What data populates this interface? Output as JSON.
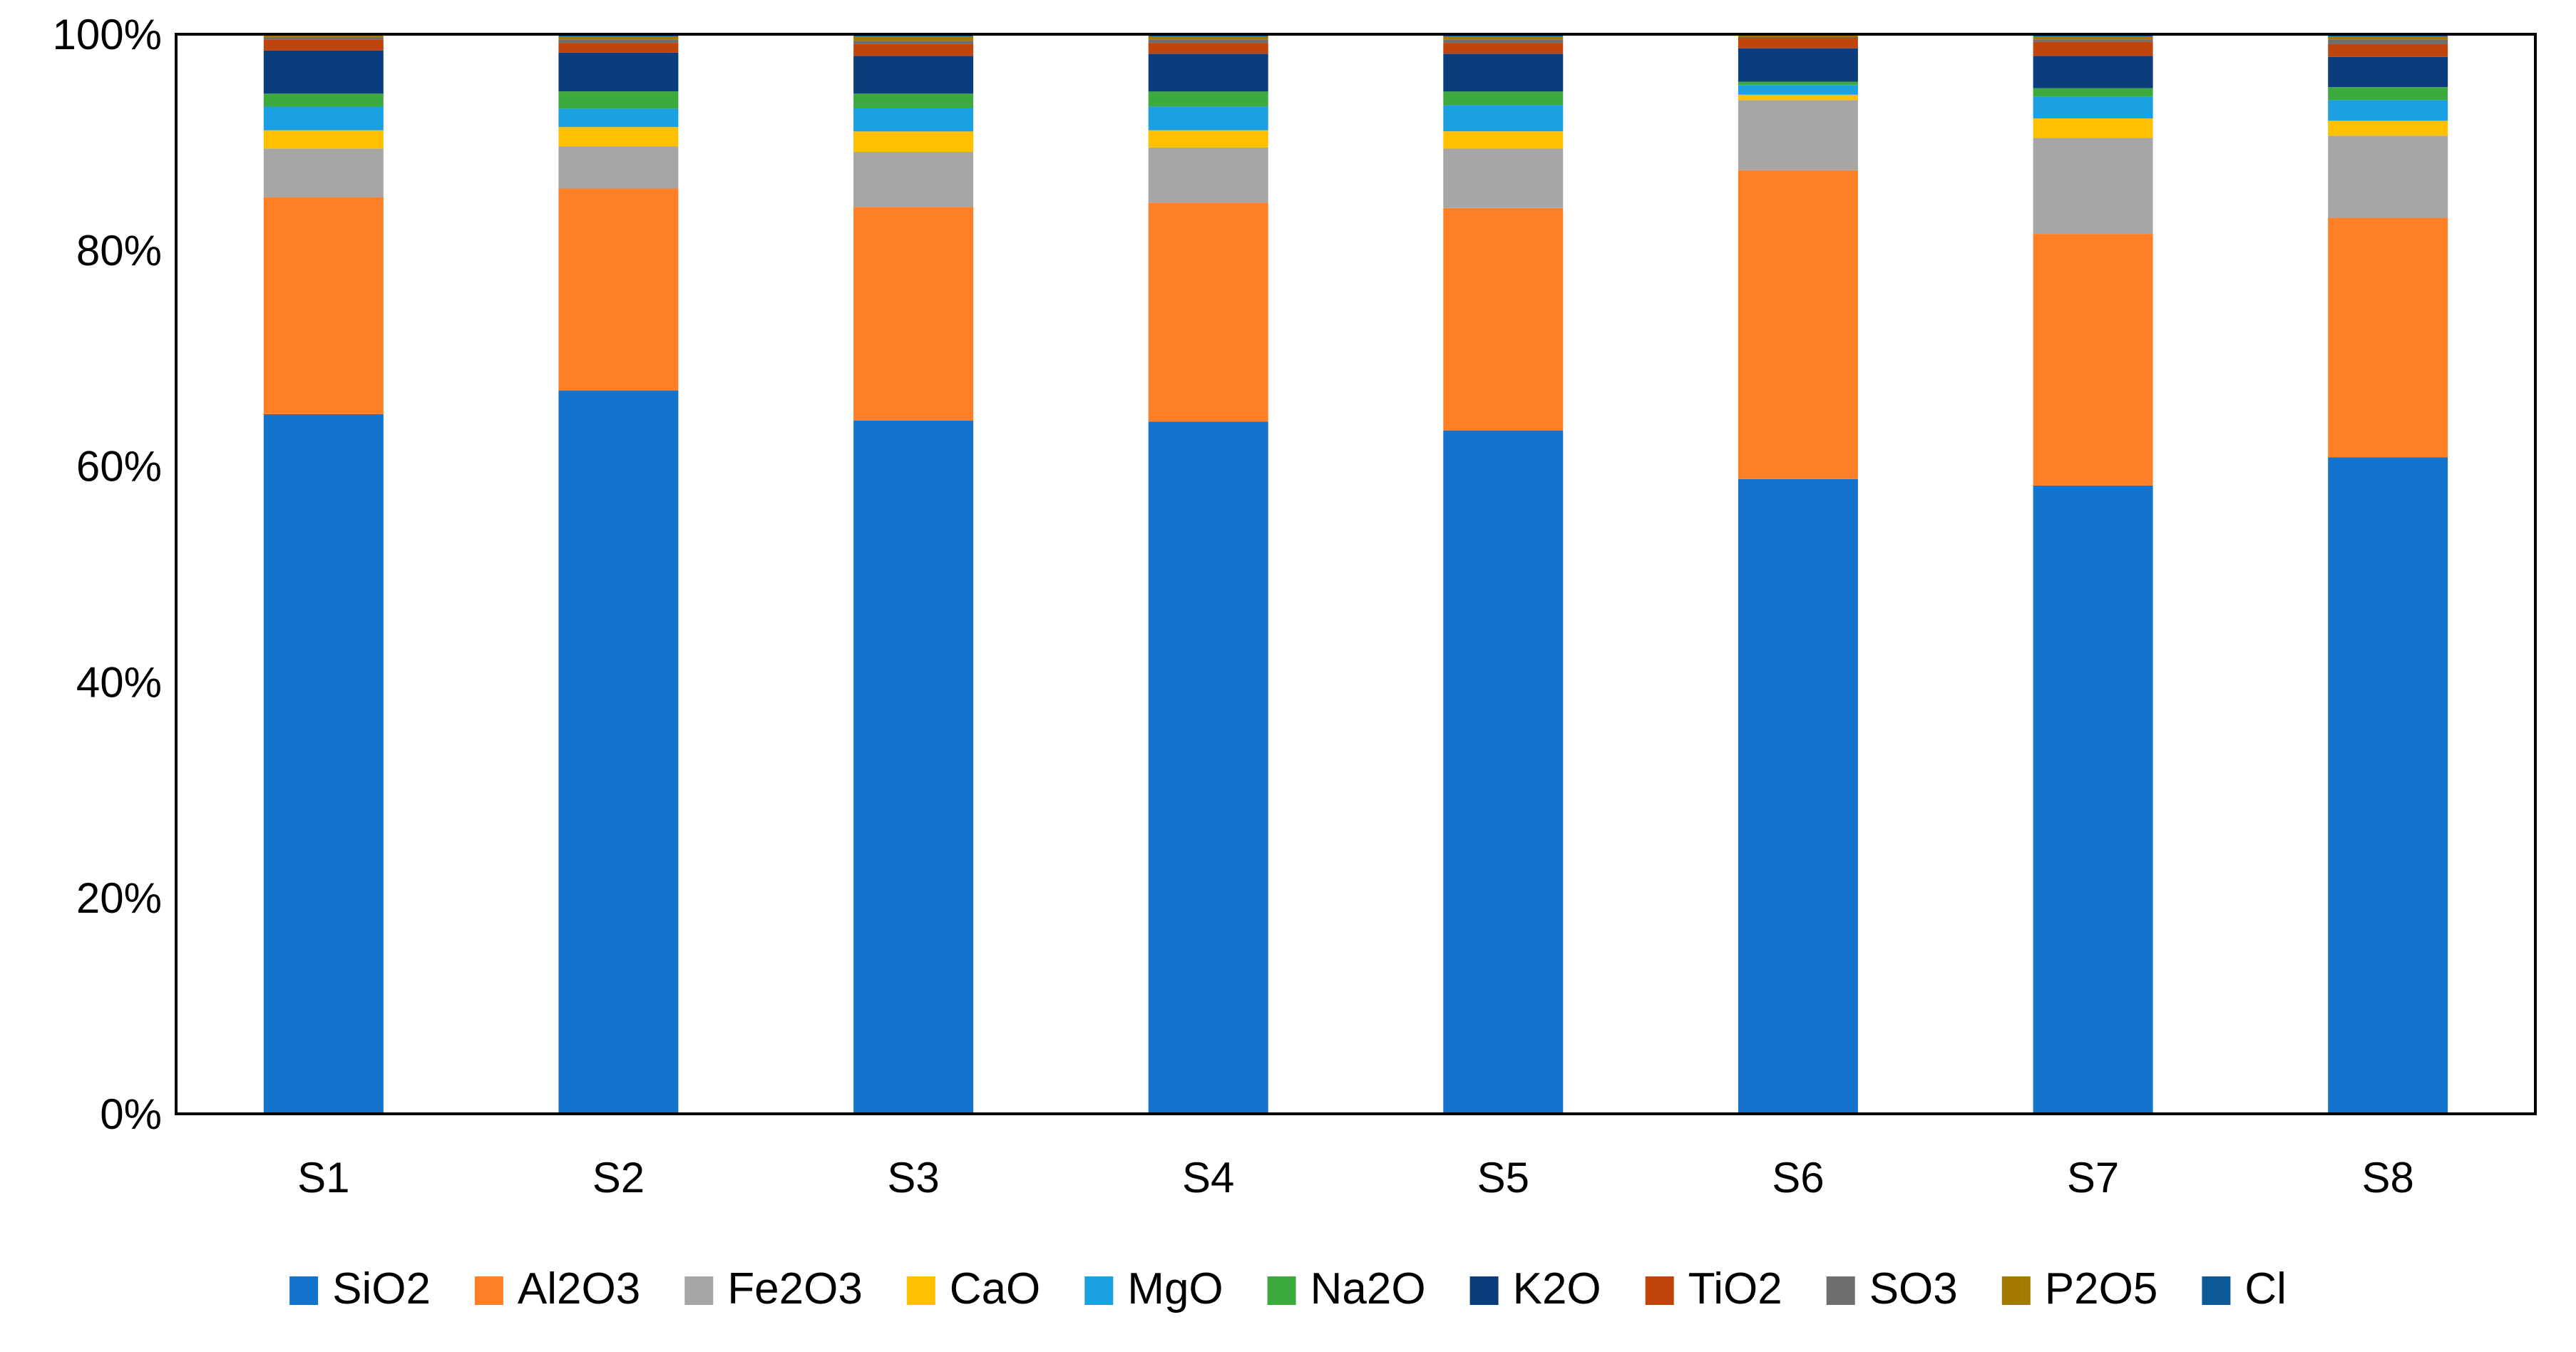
{
  "chart_data": {
    "type": "bar",
    "stacked": true,
    "normalized": true,
    "title": "",
    "xlabel": "",
    "ylabel": "",
    "ylim": [
      0,
      100
    ],
    "y_ticks": [
      "0%",
      "20%",
      "40%",
      "60%",
      "80%",
      "100%"
    ],
    "y_tick_values": [
      0,
      20,
      40,
      60,
      80,
      100
    ],
    "categories": [
      "S1",
      "S2",
      "S3",
      "S4",
      "S5",
      "S6",
      "S7",
      "S8"
    ],
    "legend_position": "bottom",
    "grid": false,
    "series": [
      {
        "name": "SiO2",
        "color": "#1473CC",
        "values": [
          64.8,
          67.0,
          64.2,
          64.1,
          63.3,
          58.8,
          58.2,
          60.8
        ]
      },
      {
        "name": "Al2O3",
        "color": "#FF7F27",
        "values": [
          20.1,
          18.7,
          19.8,
          20.3,
          20.6,
          28.6,
          23.3,
          22.2
        ]
      },
      {
        "name": "Fe2O3",
        "color": "#A6A6A6",
        "values": [
          4.5,
          3.9,
          5.1,
          5.1,
          5.5,
          6.5,
          8.9,
          7.6
        ]
      },
      {
        "name": "CaO",
        "color": "#FFC000",
        "values": [
          1.7,
          1.8,
          1.9,
          1.6,
          1.6,
          0.5,
          1.8,
          1.4
        ]
      },
      {
        "name": "MgO",
        "color": "#1BA1E2",
        "values": [
          2.2,
          1.7,
          2.2,
          2.2,
          2.4,
          0.9,
          2.0,
          1.9
        ]
      },
      {
        "name": "Na2O",
        "color": "#3DAA3D",
        "values": [
          1.2,
          1.6,
          1.3,
          1.4,
          1.3,
          0.3,
          0.8,
          1.2
        ]
      },
      {
        "name": "K2O",
        "color": "#0B3C7E",
        "values": [
          4.0,
          3.6,
          3.5,
          3.5,
          3.5,
          3.1,
          3.0,
          2.8
        ]
      },
      {
        "name": "TiO2",
        "color": "#C0450D",
        "values": [
          1.0,
          0.9,
          1.1,
          1.0,
          1.0,
          1.0,
          1.3,
          1.2
        ]
      },
      {
        "name": "SO3",
        "color": "#6F6F6F",
        "values": [
          0.2,
          0.3,
          0.3,
          0.3,
          0.3,
          0.1,
          0.2,
          0.4
        ]
      },
      {
        "name": "P2O5",
        "color": "#A47A00",
        "values": [
          0.2,
          0.3,
          0.4,
          0.3,
          0.3,
          0.1,
          0.3,
          0.3
        ]
      },
      {
        "name": "Cl",
        "color": "#0E5A96",
        "values": [
          0.1,
          0.2,
          0.2,
          0.2,
          0.2,
          0.1,
          0.2,
          0.2
        ]
      }
    ]
  }
}
